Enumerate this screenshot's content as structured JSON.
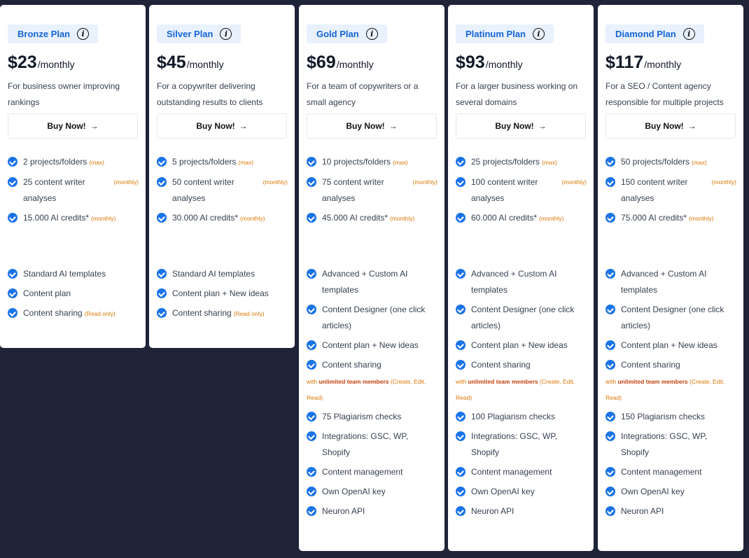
{
  "colors": {
    "background": "#1f2438",
    "accent": "#1a73e8",
    "note": "#d97706"
  },
  "plans": [
    {
      "name": "Bronze Plan",
      "price": "$23",
      "period": "/monthly",
      "description": "For business owner improving rankings",
      "button": "Buy Now!",
      "button_icon": "arrow-right-icon",
      "quotas": [
        {
          "text": "2 projects/folders",
          "note": "(max)"
        },
        {
          "text": "25 content writer analyses",
          "note": "(monthly)",
          "note_right": true
        },
        {
          "text": "15.000 AI credits*",
          "note": "(monthly)"
        }
      ],
      "features": [
        {
          "text": "Standard AI templates"
        },
        {
          "text": "Content plan"
        },
        {
          "text": "Content sharing",
          "note": "(Read only)"
        }
      ]
    },
    {
      "name": "Silver Plan",
      "price": "$45",
      "period": "/monthly",
      "description": "For a copywriter delivering outstanding results to clients",
      "button": "Buy Now!",
      "button_icon": "arrow-right-icon",
      "quotas": [
        {
          "text": "5 projects/folders",
          "note": "(max)"
        },
        {
          "text": "50 content writer analyses",
          "note": "(monthly)",
          "note_right": true
        },
        {
          "text": "30.000 AI credits*",
          "note": "(monthly)"
        }
      ],
      "features": [
        {
          "text": "Standard AI templates"
        },
        {
          "text": "Content plan + New ideas"
        },
        {
          "text": "Content sharing",
          "note": "(Read only)"
        }
      ]
    },
    {
      "name": "Gold Plan",
      "price": "$69",
      "period": "/monthly",
      "description": "For a team of copywriters or a small agency",
      "button": "Buy Now!",
      "button_icon": "arrow-right-icon",
      "quotas": [
        {
          "text": "10 projects/folders",
          "note": "(max)"
        },
        {
          "text": "75 content writer analyses",
          "note": "(monthly)",
          "note_right": true
        },
        {
          "text": "45.000 AI credits*",
          "note": "(monthly)"
        }
      ],
      "features": [
        {
          "text": "Advanced + Custom AI templates"
        },
        {
          "text": "Content Designer (one click articles)"
        },
        {
          "text": "Content plan + New ideas"
        },
        {
          "text": "Content sharing",
          "sub": {
            "pre": "with ",
            "bold": "unlimited team members",
            "post": " (Create, Edit, Read)"
          }
        },
        {
          "text": "75 Plagiarism checks"
        },
        {
          "text": "Integrations: GSC, WP, Shopify"
        },
        {
          "text": "Content management"
        },
        {
          "text": "Own OpenAI key"
        },
        {
          "text": "Neuron API"
        }
      ]
    },
    {
      "name": "Platinum Plan",
      "price": "$93",
      "period": "/monthly",
      "description": "For a larger business working on several domains",
      "button": "Buy Now!",
      "button_icon": "arrow-right-icon",
      "quotas": [
        {
          "text": "25 projects/folders",
          "note": "(max)"
        },
        {
          "text": "100 content writer analyses",
          "note": "(monthly)",
          "note_right": true
        },
        {
          "text": "60.000 AI credits*",
          "note": "(monthly)"
        }
      ],
      "features": [
        {
          "text": "Advanced + Custom AI templates"
        },
        {
          "text": "Content Designer (one click articles)"
        },
        {
          "text": "Content plan + New ideas"
        },
        {
          "text": "Content sharing",
          "sub": {
            "pre": "with ",
            "bold": "unlimited team members",
            "post": " (Create, Edit, Read)"
          }
        },
        {
          "text": "100 Plagiarism checks"
        },
        {
          "text": "Integrations: GSC, WP, Shopify"
        },
        {
          "text": "Content management"
        },
        {
          "text": "Own OpenAI key"
        },
        {
          "text": "Neuron API"
        }
      ]
    },
    {
      "name": "Diamond Plan",
      "price": "$117",
      "period": "/monthly",
      "description": "For a SEO / Content agency responsible for multiple projects",
      "button": "Buy Now!",
      "button_icon": "arrow-right-icon",
      "quotas": [
        {
          "text": "50 projects/folders",
          "note": "(max)"
        },
        {
          "text": "150 content writer analyses",
          "note": "(monthly)",
          "note_right": true
        },
        {
          "text": "75.000 AI credits*",
          "note": "(monthly)"
        }
      ],
      "features": [
        {
          "text": "Advanced + Custom AI templates"
        },
        {
          "text": "Content Designer (one click articles)"
        },
        {
          "text": "Content plan + New ideas"
        },
        {
          "text": "Content sharing",
          "sub": {
            "pre": "with ",
            "bold": "unlimited team members",
            "post": " (Create, Edit, Read)"
          }
        },
        {
          "text": "150 Plagiarism checks"
        },
        {
          "text": "Integrations: GSC, WP, Shopify"
        },
        {
          "text": "Content management"
        },
        {
          "text": "Own OpenAI key"
        },
        {
          "text": "Neuron API"
        }
      ]
    }
  ]
}
